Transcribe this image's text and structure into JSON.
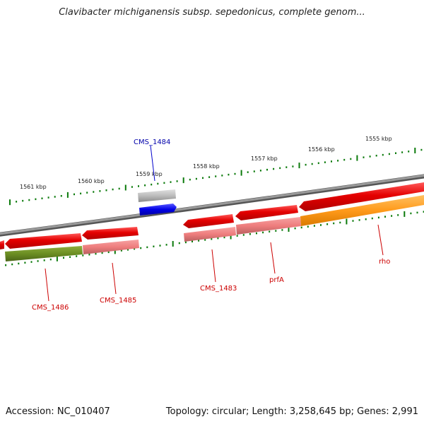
{
  "title": "Clavibacter michiganensis subsp. sepedonicus, complete genom...",
  "footer": {
    "accession": "Accession: NC_010407",
    "topology": "Topology: circular; Length: 3,258,645 bp; Genes: 2,991"
  },
  "colors": {
    "backbone": "#7a7a7a",
    "cds_forward_red": "#e00000",
    "cds_light": "#f07a7a",
    "cds_olive": "#6b8e23",
    "cds_orange": "#ff9a1a",
    "cds_blue": "#0000e0",
    "cds_gray": "#b5b5b5",
    "tick_green": "#0b7a0b",
    "label_red": "#cc0000",
    "label_blue": "#0000aa"
  },
  "scale": {
    "ticks": [
      {
        "label": "1561 kbp"
      },
      {
        "label": "1560 kbp"
      },
      {
        "label": "1559 kbp"
      },
      {
        "label": "1558 kbp"
      },
      {
        "label": "1557 kbp"
      },
      {
        "label": "1556 kbp"
      },
      {
        "label": "1555 kbp"
      }
    ]
  },
  "gene_labels": [
    {
      "name": "CMS_1484",
      "color": "label_blue"
    },
    {
      "name": "CMS_1486",
      "color": "label_red"
    },
    {
      "name": "CMS_1485",
      "color": "label_red"
    },
    {
      "name": "CMS_1483",
      "color": "label_red"
    },
    {
      "name": "prfA",
      "color": "label_red"
    },
    {
      "name": "rho",
      "color": "label_red"
    }
  ]
}
